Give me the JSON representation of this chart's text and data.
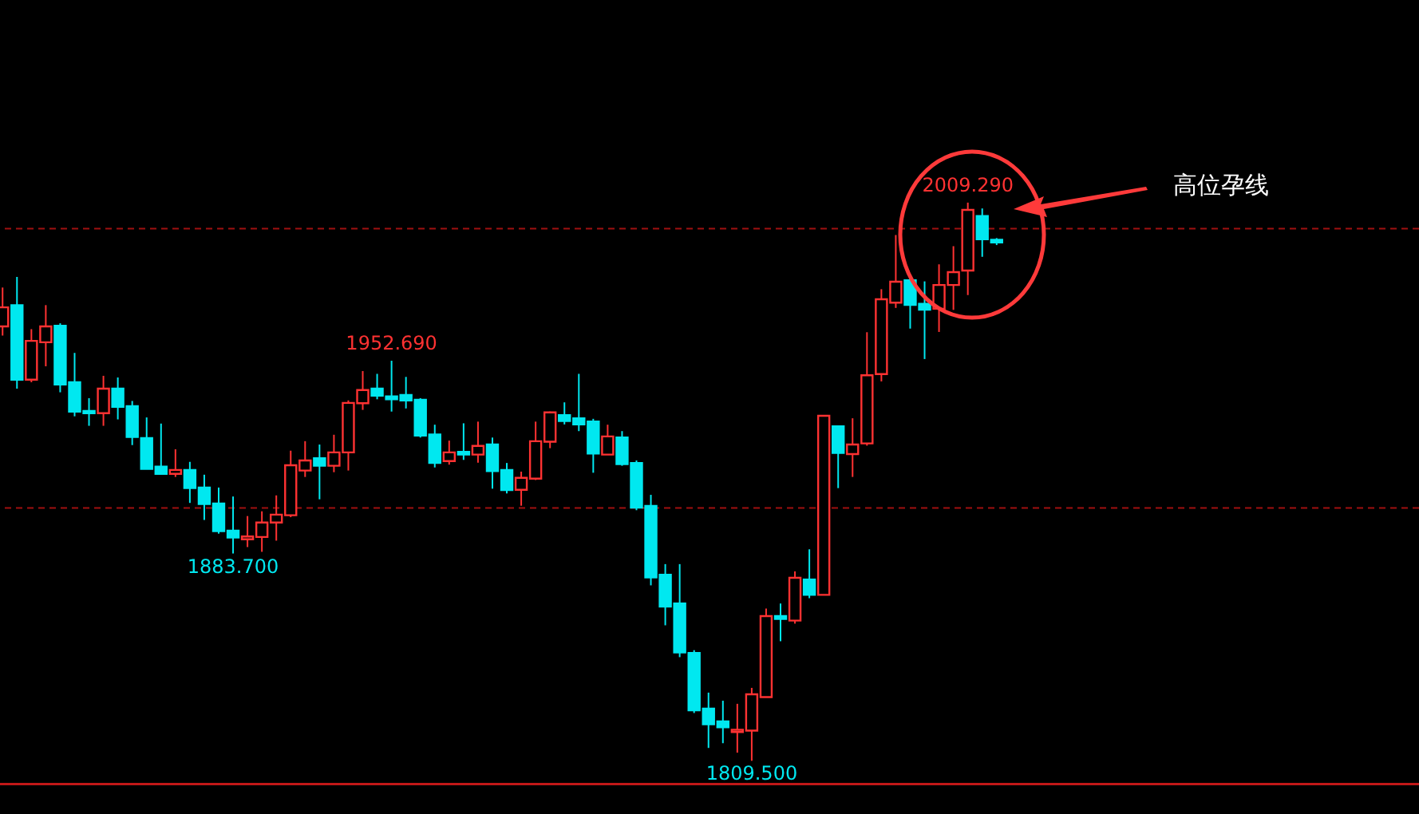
{
  "chart_data": {
    "type": "candlestick",
    "categories": [
      null,
      null,
      null,
      null,
      null,
      null,
      null,
      null,
      null,
      null,
      null,
      null,
      null,
      null,
      null,
      null,
      null,
      null,
      null,
      null,
      null,
      null,
      null,
      null,
      null,
      null,
      null,
      null,
      null,
      null,
      null,
      null,
      null,
      null,
      null,
      null,
      null,
      null,
      null,
      null,
      null,
      null,
      null,
      null,
      null,
      null,
      null,
      null,
      null,
      null,
      null,
      null,
      null,
      null,
      null,
      null,
      null,
      null,
      null,
      null,
      null,
      null,
      null,
      null,
      null,
      null,
      null,
      null,
      null,
      null
    ],
    "ohlc": [
      [
        1965.0,
        1978.9,
        1961.7,
        1971.8
      ],
      [
        1972.6,
        1982.7,
        1942.7,
        1945.9
      ],
      [
        1945.9,
        1964.0,
        1945.0,
        1959.8
      ],
      [
        1959.3,
        1972.6,
        1950.7,
        1965.0
      ],
      [
        1965.2,
        1966.1,
        1941.4,
        1944.2
      ],
      [
        1945.0,
        1955.5,
        1932.8,
        1934.5
      ],
      [
        1934.7,
        1939.3,
        1929.4,
        1933.9
      ],
      [
        1933.9,
        1947.3,
        1929.4,
        1942.7
      ],
      [
        1942.7,
        1946.7,
        1931.7,
        1936.2
      ],
      [
        1936.4,
        1938.3,
        1922.5,
        1925.4
      ],
      [
        1925.0,
        1932.4,
        1914.0,
        1914.0
      ],
      [
        1914.8,
        1930.2,
        1912.2,
        1912.2
      ],
      [
        1912.2,
        1921.0,
        1911.1,
        1913.6
      ],
      [
        1913.6,
        1916.5,
        1901.8,
        1907.1
      ],
      [
        1907.3,
        1911.9,
        1895.7,
        1901.4
      ],
      [
        1901.6,
        1907.3,
        1890.8,
        1891.7
      ],
      [
        1891.9,
        1904.1,
        1883.7,
        1889.4
      ],
      [
        1888.8,
        1897.1,
        1886.0,
        1889.8
      ],
      [
        1889.6,
        1898.8,
        1884.3,
        1894.8
      ],
      [
        1894.8,
        1904.5,
        1888.3,
        1897.6
      ],
      [
        1897.4,
        1920.5,
        1896.7,
        1915.3
      ],
      [
        1913.4,
        1923.9,
        1911.1,
        1917.0
      ],
      [
        1917.8,
        1922.7,
        1903.1,
        1915.1
      ],
      [
        1915.1,
        1926.2,
        1912.8,
        1919.9
      ],
      [
        1919.9,
        1938.5,
        1913.4,
        1937.6
      ],
      [
        1937.5,
        1949.0,
        1935.1,
        1942.2
      ],
      [
        1942.7,
        1948.0,
        1938.9,
        1940.2
      ],
      [
        1939.9,
        1952.69,
        1934.5,
        1938.9
      ],
      [
        1940.4,
        1946.9,
        1935.6,
        1938.5
      ],
      [
        1938.7,
        1939.3,
        1925.2,
        1925.9
      ],
      [
        1926.3,
        1929.8,
        1914.5,
        1916.1
      ],
      [
        1916.8,
        1924.1,
        1915.5,
        1919.9
      ],
      [
        1920.1,
        1930.3,
        1917.2,
        1919.1
      ],
      [
        1919.1,
        1930.9,
        1916.2,
        1922.2
      ],
      [
        1922.7,
        1925.2,
        1906.9,
        1913.2
      ],
      [
        1913.6,
        1916.1,
        1905.2,
        1906.4
      ],
      [
        1906.5,
        1913.0,
        1900.8,
        1910.8
      ],
      [
        1910.5,
        1930.9,
        1910.0,
        1923.9
      ],
      [
        1923.7,
        1934.5,
        1921.4,
        1934.2
      ],
      [
        1933.2,
        1937.8,
        1929.9,
        1931.1
      ],
      [
        1932.1,
        1948.0,
        1927.5,
        1929.9
      ],
      [
        1930.9,
        1931.9,
        1912.6,
        1919.5
      ],
      [
        1919.1,
        1929.8,
        1919.1,
        1925.6
      ],
      [
        1925.2,
        1927.5,
        1915.1,
        1915.7
      ],
      [
        1916.1,
        1917.0,
        1899.2,
        1900.1
      ],
      [
        1900.7,
        1904.7,
        1872.3,
        1875.1
      ],
      [
        1876.1,
        1879.9,
        1858.0,
        1864.7
      ],
      [
        1865.8,
        1879.9,
        1846.6,
        1848.3
      ],
      [
        1848.1,
        1849.1,
        1826.6,
        1827.6
      ],
      [
        1828.2,
        1833.9,
        1814.1,
        1822.6
      ],
      [
        1823.6,
        1831.0,
        1815.8,
        1821.5
      ],
      [
        1819.8,
        1829.9,
        1812.4,
        1820.6
      ],
      [
        1820.3,
        1835.6,
        1809.5,
        1833.3
      ],
      [
        1832.3,
        1864.0,
        1832.3,
        1861.3
      ],
      [
        1861.3,
        1865.8,
        1852.3,
        1860.3
      ],
      [
        1859.7,
        1877.3,
        1858.6,
        1875.0
      ],
      [
        1874.4,
        1885.2,
        1867.7,
        1868.9
      ],
      [
        1868.9,
        1933.0,
        1868.9,
        1933.0
      ],
      [
        1929.2,
        1929.2,
        1907.1,
        1919.7
      ],
      [
        1919.3,
        1932.1,
        1911.1,
        1922.7
      ],
      [
        1923.1,
        1962.9,
        1922.3,
        1947.5
      ],
      [
        1947.9,
        1978.3,
        1945.3,
        1974.7
      ],
      [
        1973.5,
        1997.7,
        1971.6,
        1981.0
      ],
      [
        1981.5,
        1983.4,
        1964.2,
        1972.7
      ],
      [
        1973.1,
        1981.1,
        1953.3,
        1971.0
      ],
      [
        1971.3,
        1987.2,
        1963.0,
        1979.8
      ],
      [
        1979.8,
        1993.7,
        1970.9,
        1984.4
      ],
      [
        1985.0,
        2009.29,
        1976.2,
        2006.7
      ],
      [
        2004.5,
        2007.2,
        1989.9,
        1996.2
      ],
      [
        1996.0,
        1996.6,
        1994.1,
        1995.0
      ]
    ],
    "ref_lines": [
      {
        "axis": "y",
        "value": 2000,
        "color": "#a01010",
        "line_style": "dashed"
      },
      {
        "axis": "y",
        "value": 1900,
        "color": "#a01010",
        "line_style": "dashed"
      }
    ],
    "annotations": [
      {
        "text": "2009.290",
        "y": 2009.29
      },
      {
        "text": "1952.690",
        "y": 1952.69
      },
      {
        "text": "1883.700",
        "y": 1883.7
      },
      {
        "text": "1809.500",
        "y": 1809.5
      },
      "高位孕线"
    ]
  }
}
